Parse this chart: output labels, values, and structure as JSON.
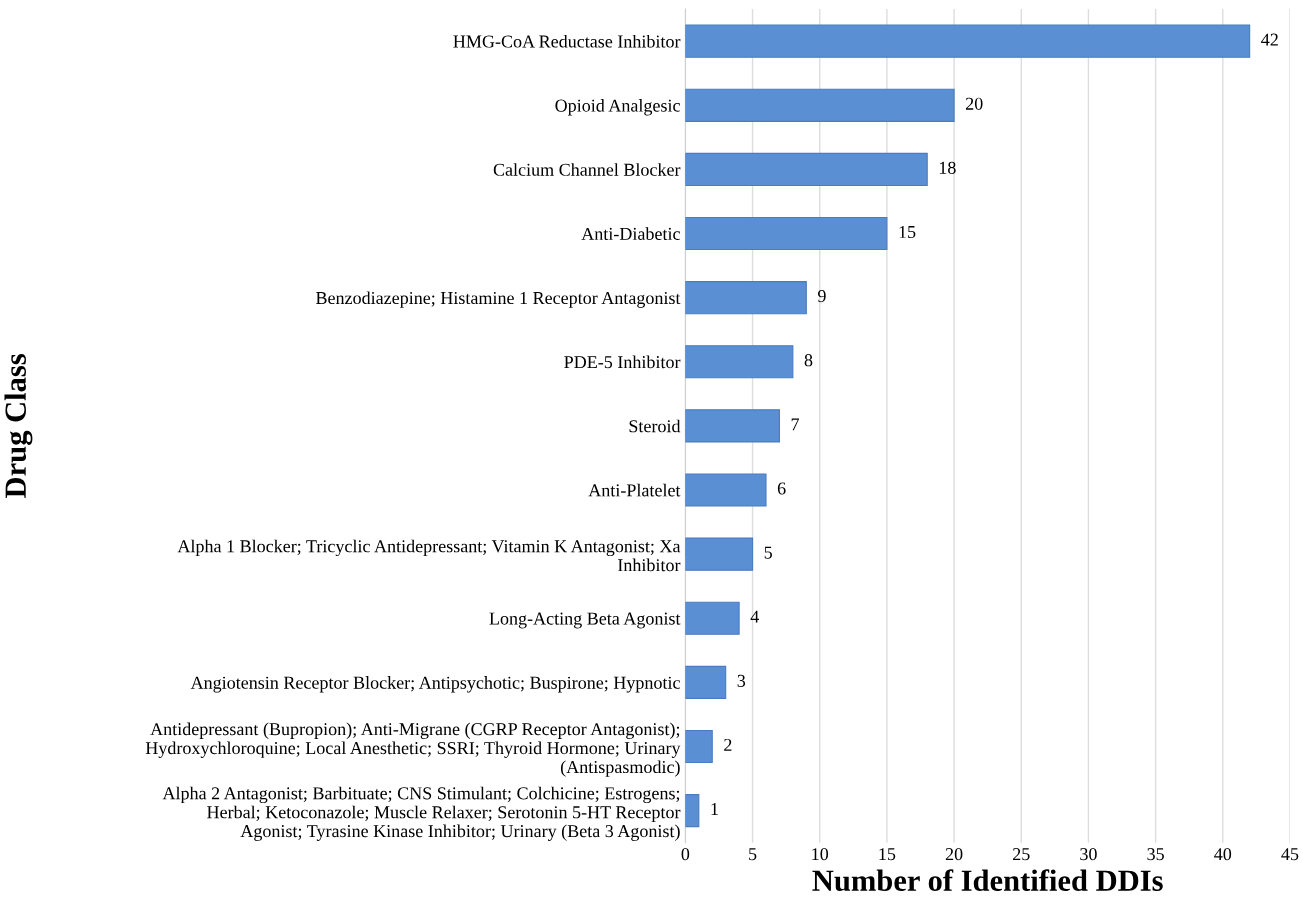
{
  "chart_data": {
    "type": "bar",
    "orientation": "horizontal",
    "xlabel": "Number of Identified DDIs",
    "ylabel": "Drug Class",
    "categories": [
      "HMG-CoA Reductase Inhibitor",
      "Opioid Analgesic",
      "Calcium Channel Blocker",
      "Anti-Diabetic",
      "Benzodiazepine; Histamine 1 Receptor Antagonist",
      "PDE-5 Inhibitor",
      "Steroid",
      "Anti-Platelet",
      "Alpha 1 Blocker; Tricyclic Antidepressant; Vitamin K Antagonist; Xa\nInhibitor",
      "Long-Acting Beta Agonist",
      "Angiotensin Receptor Blocker; Antipsychotic; Buspirone; Hypnotic",
      "Antidepressant (Bupropion); Anti-Migrane (CGRP Receptor Antagonist);\nHydroxychloroquine; Local Anesthetic; SSRI; Thyroid Hormone; Urinary\n(Antispasmodic)",
      "Alpha 2 Antagonist; Barbituate; CNS Stimulant; Colchicine; Estrogens;\nHerbal; Ketoconazole; Muscle Relaxer; Serotonin 5-HT Receptor\nAgonist; Tyrasine Kinase Inhibitor; Urinary (Beta 3 Agonist)"
    ],
    "values": [
      42,
      20,
      18,
      15,
      9,
      8,
      7,
      6,
      5,
      4,
      3,
      2,
      1
    ],
    "color": "#5b8fd3",
    "xlim": [
      0,
      45
    ],
    "xticks": [
      0,
      5,
      10,
      15,
      20,
      25,
      30,
      35,
      40,
      45
    ],
    "grid": "x",
    "data_labels": true
  }
}
